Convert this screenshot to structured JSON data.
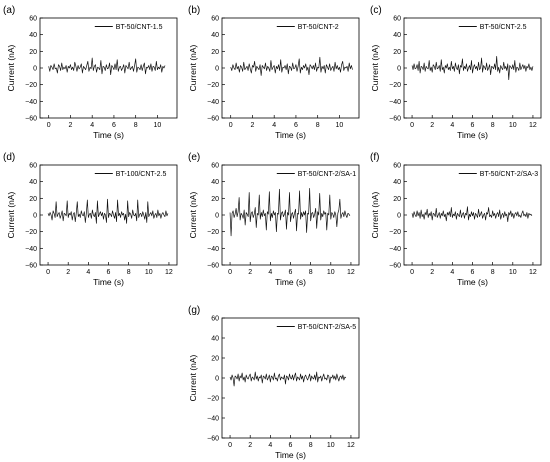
{
  "chart_data": [
    {
      "panel_label": "(a)",
      "type": "line",
      "xlabel": "Time (s)",
      "ylabel": "Current (nA)",
      "xlim": [
        -0.8,
        11.8
      ],
      "ylim": [
        -60,
        60
      ],
      "xticks": [
        0,
        2,
        4,
        6,
        8,
        10
      ],
      "yticks": [
        -60,
        -40,
        -20,
        0,
        20,
        40,
        60
      ],
      "legend": "top-right",
      "series": [
        {
          "name": "BT-50/CNT-1.5",
          "x_start": 0,
          "x_step": 0.1,
          "values": [
            2,
            -4,
            3,
            1,
            -2,
            5,
            -1,
            0,
            -6,
            4,
            2,
            -3,
            6,
            -2,
            1,
            -1,
            3,
            -5,
            2,
            0,
            4,
            -2,
            1,
            -3,
            7,
            2,
            -4,
            3,
            -1,
            1,
            5,
            -6,
            2,
            0,
            -2,
            3,
            8,
            -4,
            1,
            -1,
            12,
            -3,
            2,
            4,
            -5,
            1,
            0,
            -2,
            9,
            -7,
            2,
            1,
            -3,
            4,
            -1,
            0,
            6,
            -8,
            3,
            1,
            -2,
            5,
            -2,
            10,
            -4,
            1,
            2,
            -3,
            0,
            4,
            -6,
            3,
            1,
            -1,
            7,
            -2,
            0,
            2,
            -4,
            3,
            11,
            -5,
            1,
            0,
            -2,
            4,
            -3,
            2,
            6,
            -7,
            1,
            0,
            3,
            -2,
            5,
            -4,
            2,
            1,
            -3,
            8,
            -2,
            1,
            -1,
            4,
            -5,
            2,
            0,
            3
          ]
        }
      ]
    },
    {
      "panel_label": "(b)",
      "type": "line",
      "xlabel": "Time (s)",
      "ylabel": "Current (nA)",
      "xlim": [
        -0.8,
        11.8
      ],
      "ylim": [
        -60,
        60
      ],
      "xticks": [
        0,
        2,
        4,
        6,
        8,
        10
      ],
      "yticks": [
        -60,
        -40,
        -20,
        0,
        20,
        40,
        60
      ],
      "legend": "top-right",
      "series": [
        {
          "name": "BT-50/CNT-2",
          "x_start": 0,
          "x_step": 0.1,
          "values": [
            1,
            -3,
            4,
            0,
            -2,
            6,
            -1,
            2,
            -5,
            3,
            1,
            -4,
            7,
            -2,
            0,
            2,
            -3,
            5,
            -1,
            -6,
            3,
            1,
            8,
            -4,
            2,
            0,
            -2,
            4,
            -9,
            3,
            1,
            -1,
            6,
            -3,
            2,
            0,
            -4,
            9,
            -2,
            1,
            3,
            -6,
            2,
            -1,
            4,
            -3,
            10,
            -5,
            1,
            0,
            3,
            -2,
            5,
            -7,
            2,
            1,
            -3,
            6,
            -1,
            0,
            4,
            -4,
            2,
            11,
            -6,
            1,
            -2,
            3,
            0,
            5,
            -3,
            1,
            -8,
            4,
            2,
            -1,
            3,
            -2,
            6,
            -4,
            1,
            0,
            13,
            -5,
            2,
            -1,
            3,
            -6,
            4,
            1,
            -2,
            5,
            -3,
            0,
            2,
            -4,
            7,
            -1,
            3,
            -2,
            1,
            -5,
            4,
            8,
            -3,
            1,
            0,
            2,
            -4,
            6,
            -1,
            3,
            -2
          ]
        }
      ]
    },
    {
      "panel_label": "(c)",
      "type": "line",
      "xlabel": "Time (s)",
      "ylabel": "Current (nA)",
      "xlim": [
        -0.8,
        12.8
      ],
      "ylim": [
        -60,
        60
      ],
      "xticks": [
        0,
        2,
        4,
        6,
        8,
        10,
        12
      ],
      "yticks": [
        -60,
        -40,
        -20,
        0,
        20,
        40,
        60
      ],
      "legend": "top-right",
      "series": [
        {
          "name": "BT-50/CNT-2.5",
          "x_start": 0,
          "x_step": 0.1,
          "values": [
            3,
            -2,
            5,
            -1,
            0,
            4,
            -3,
            8,
            -6,
            2,
            1,
            -2,
            6,
            -4,
            2,
            0,
            -1,
            9,
            -3,
            1,
            -5,
            4,
            2,
            -2,
            7,
            -1,
            0,
            3,
            -4,
            10,
            -2,
            1,
            -6,
            3,
            0,
            5,
            -2,
            1,
            -3,
            8,
            -1,
            2,
            -4,
            6,
            0,
            -2,
            4,
            -7,
            3,
            1,
            11,
            -3,
            2,
            -1,
            5,
            -4,
            0,
            3,
            -2,
            9,
            -6,
            1,
            4,
            -1,
            2,
            -3,
            7,
            -2,
            0,
            12,
            -5,
            3,
            1,
            -2,
            6,
            -3,
            0,
            4,
            -8,
            2,
            1,
            -1,
            5,
            -2,
            14,
            -4,
            1,
            -6,
            3,
            0,
            -2,
            7,
            -1,
            2,
            -3,
            5,
            -14,
            3,
            1,
            -1,
            4,
            -2,
            9,
            -5,
            1,
            0,
            -3,
            6,
            -2,
            1,
            4,
            -1,
            3,
            -4,
            2,
            0,
            5,
            -2,
            1,
            -3,
            2
          ]
        }
      ]
    },
    {
      "panel_label": "(d)",
      "type": "line",
      "xlabel": "Time (s)",
      "ylabel": "Current (nA)",
      "xlim": [
        -0.8,
        12.8
      ],
      "ylim": [
        -60,
        60
      ],
      "xticks": [
        0,
        2,
        4,
        6,
        8,
        10,
        12
      ],
      "yticks": [
        -60,
        -40,
        -20,
        0,
        20,
        40,
        60
      ],
      "legend": "top-right",
      "series": [
        {
          "name": "BT-100/CNT-2.5",
          "x_start": 0,
          "x_step": 0.1,
          "values": [
            2,
            -1,
            3,
            0,
            -6,
            5,
            2,
            -3,
            16,
            -2,
            1,
            3,
            -4,
            0,
            5,
            -7,
            2,
            1,
            -1,
            17,
            -3,
            2,
            0,
            4,
            -6,
            1,
            3,
            -8,
            2,
            16,
            -2,
            1,
            -3,
            5,
            0,
            -1,
            4,
            -9,
            2,
            18,
            -3,
            1,
            2,
            -4,
            6,
            0,
            -2,
            3,
            -10,
            17,
            -2,
            1,
            4,
            -1,
            3,
            -5,
            2,
            0,
            -9,
            19,
            -3,
            2,
            1,
            -2,
            5,
            0,
            -4,
            3,
            -8,
            18,
            -1,
            2,
            -3,
            4,
            0,
            2,
            -6,
            1,
            -10,
            17,
            -2,
            3,
            1,
            -4,
            6,
            0,
            -1,
            2,
            -7,
            18,
            -3,
            1,
            2,
            -2,
            4,
            0,
            -5,
            3,
            -9,
            16,
            -2,
            1,
            3,
            -1,
            5,
            -4,
            0,
            2,
            -3,
            6,
            -1,
            2,
            -4,
            1,
            3,
            0,
            -2,
            5,
            -1,
            2
          ]
        }
      ]
    },
    {
      "panel_label": "(e)",
      "type": "line",
      "xlabel": "Time (s)",
      "ylabel": "Current (nA)",
      "xlim": [
        -0.8,
        12.8
      ],
      "ylim": [
        -60,
        60
      ],
      "xticks": [
        0,
        2,
        4,
        6,
        8,
        10,
        12
      ],
      "yticks": [
        -60,
        -40,
        -20,
        0,
        20,
        40,
        60
      ],
      "legend": "top-right",
      "series": [
        {
          "name": "BT-50/CNT-2/SA-1",
          "x_start": 0,
          "x_step": 0.1,
          "values": [
            3,
            -25,
            2,
            5,
            -3,
            1,
            8,
            -2,
            4,
            21,
            -6,
            2,
            0,
            -4,
            6,
            -12,
            3,
            1,
            -2,
            27,
            -8,
            2,
            4,
            -3,
            1,
            9,
            -15,
            2,
            0,
            24,
            -5,
            3,
            -2,
            6,
            -1,
            2,
            -18,
            4,
            1,
            28,
            -7,
            2,
            -3,
            5,
            0,
            3,
            -20,
            2,
            1,
            31,
            -6,
            2,
            4,
            -2,
            1,
            6,
            -17,
            3,
            0,
            27,
            -8,
            1,
            3,
            -4,
            2,
            7,
            -19,
            2,
            1,
            29,
            -5,
            3,
            -2,
            4,
            0,
            5,
            -21,
            2,
            1,
            32,
            -7,
            2,
            3,
            -3,
            1,
            8,
            -16,
            4,
            0,
            26,
            -6,
            2,
            -2,
            5,
            1,
            3,
            -18,
            2,
            0,
            24,
            -5,
            3,
            1,
            -3,
            4,
            0,
            -14,
            2,
            6,
            19,
            -4,
            1,
            3,
            -2,
            5,
            0,
            -3,
            2,
            1,
            -1
          ]
        }
      ]
    },
    {
      "panel_label": "(f)",
      "type": "line",
      "xlabel": "Time (s)",
      "ylabel": "Current (nA)",
      "xlim": [
        -0.8,
        12.8
      ],
      "ylim": [
        -60,
        60
      ],
      "xticks": [
        0,
        2,
        4,
        6,
        8,
        10,
        12
      ],
      "yticks": [
        -60,
        -40,
        -20,
        0,
        20,
        40,
        60
      ],
      "legend": "top-right",
      "series": [
        {
          "name": "BT-50/CNT-2/SA-3",
          "x_start": 0,
          "x_step": 0.1,
          "values": [
            2,
            -3,
            4,
            0,
            -2,
            5,
            -1,
            3,
            -4,
            6,
            -2,
            1,
            -5,
            3,
            0,
            7,
            -3,
            2,
            -1,
            4,
            -6,
            2,
            1,
            -2,
            8,
            -3,
            0,
            3,
            -4,
            2,
            -1,
            5,
            -2,
            1,
            -7,
            3,
            0,
            4,
            -2,
            9,
            -3,
            1,
            -1,
            4,
            -5,
            2,
            0,
            -2,
            6,
            -3,
            1,
            3,
            -4,
            2,
            0,
            10,
            -6,
            1,
            -2,
            4,
            -1,
            3,
            -5,
            2,
            0,
            -3,
            7,
            -2,
            1,
            4,
            -4,
            0,
            2,
            -6,
            3,
            1,
            9,
            -2,
            0,
            -3,
            5,
            -1,
            2,
            -4,
            1,
            3,
            -2,
            6,
            -5,
            0,
            2,
            -3,
            4,
            -1,
            1,
            -8,
            3,
            0,
            5,
            -2,
            2,
            -4,
            1,
            3,
            -1,
            4,
            -2,
            0,
            -3,
            2,
            5,
            -1,
            1,
            -2,
            3,
            -4,
            2,
            0,
            1,
            -1
          ]
        }
      ]
    },
    {
      "panel_label": "(g)",
      "type": "line",
      "xlabel": "Time (s)",
      "ylabel": "Current (nA)",
      "xlim": [
        -0.8,
        12.8
      ],
      "ylim": [
        -60,
        60
      ],
      "xticks": [
        0,
        2,
        4,
        6,
        8,
        10,
        12
      ],
      "yticks": [
        -60,
        -40,
        -20,
        0,
        20,
        40,
        60
      ],
      "legend": "top-right",
      "series": [
        {
          "name": "BT-50/CNT-2/SA-5",
          "x_start": 0,
          "x_step": 0.1,
          "values": [
            1,
            -2,
            3,
            0,
            -8,
            2,
            1,
            -1,
            4,
            -3,
            2,
            0,
            5,
            -2,
            1,
            -4,
            3,
            0,
            -1,
            2,
            4,
            -3,
            1,
            0,
            -2,
            6,
            -1,
            2,
            -3,
            1,
            0,
            3,
            -5,
            2,
            1,
            -1,
            4,
            -2,
            0,
            3,
            -4,
            2,
            1,
            -2,
            5,
            -1,
            0,
            -3,
            2,
            4,
            -2,
            1,
            0,
            -1,
            3,
            -6,
            2,
            1,
            -2,
            4,
            0,
            -1,
            3,
            -2,
            2,
            5,
            -3,
            1,
            0,
            -2,
            4,
            -1,
            2,
            -4,
            1,
            3,
            0,
            -2,
            1,
            4,
            -3,
            2,
            0,
            -1,
            3,
            -2,
            6,
            -4,
            1,
            0,
            2,
            -3,
            1,
            4,
            -1,
            0,
            -2,
            3,
            2,
            -5,
            1,
            0,
            3,
            -1,
            2,
            -2,
            4,
            0,
            -3,
            1,
            2,
            -1,
            3,
            -2,
            1,
            0
          ]
        }
      ]
    }
  ]
}
